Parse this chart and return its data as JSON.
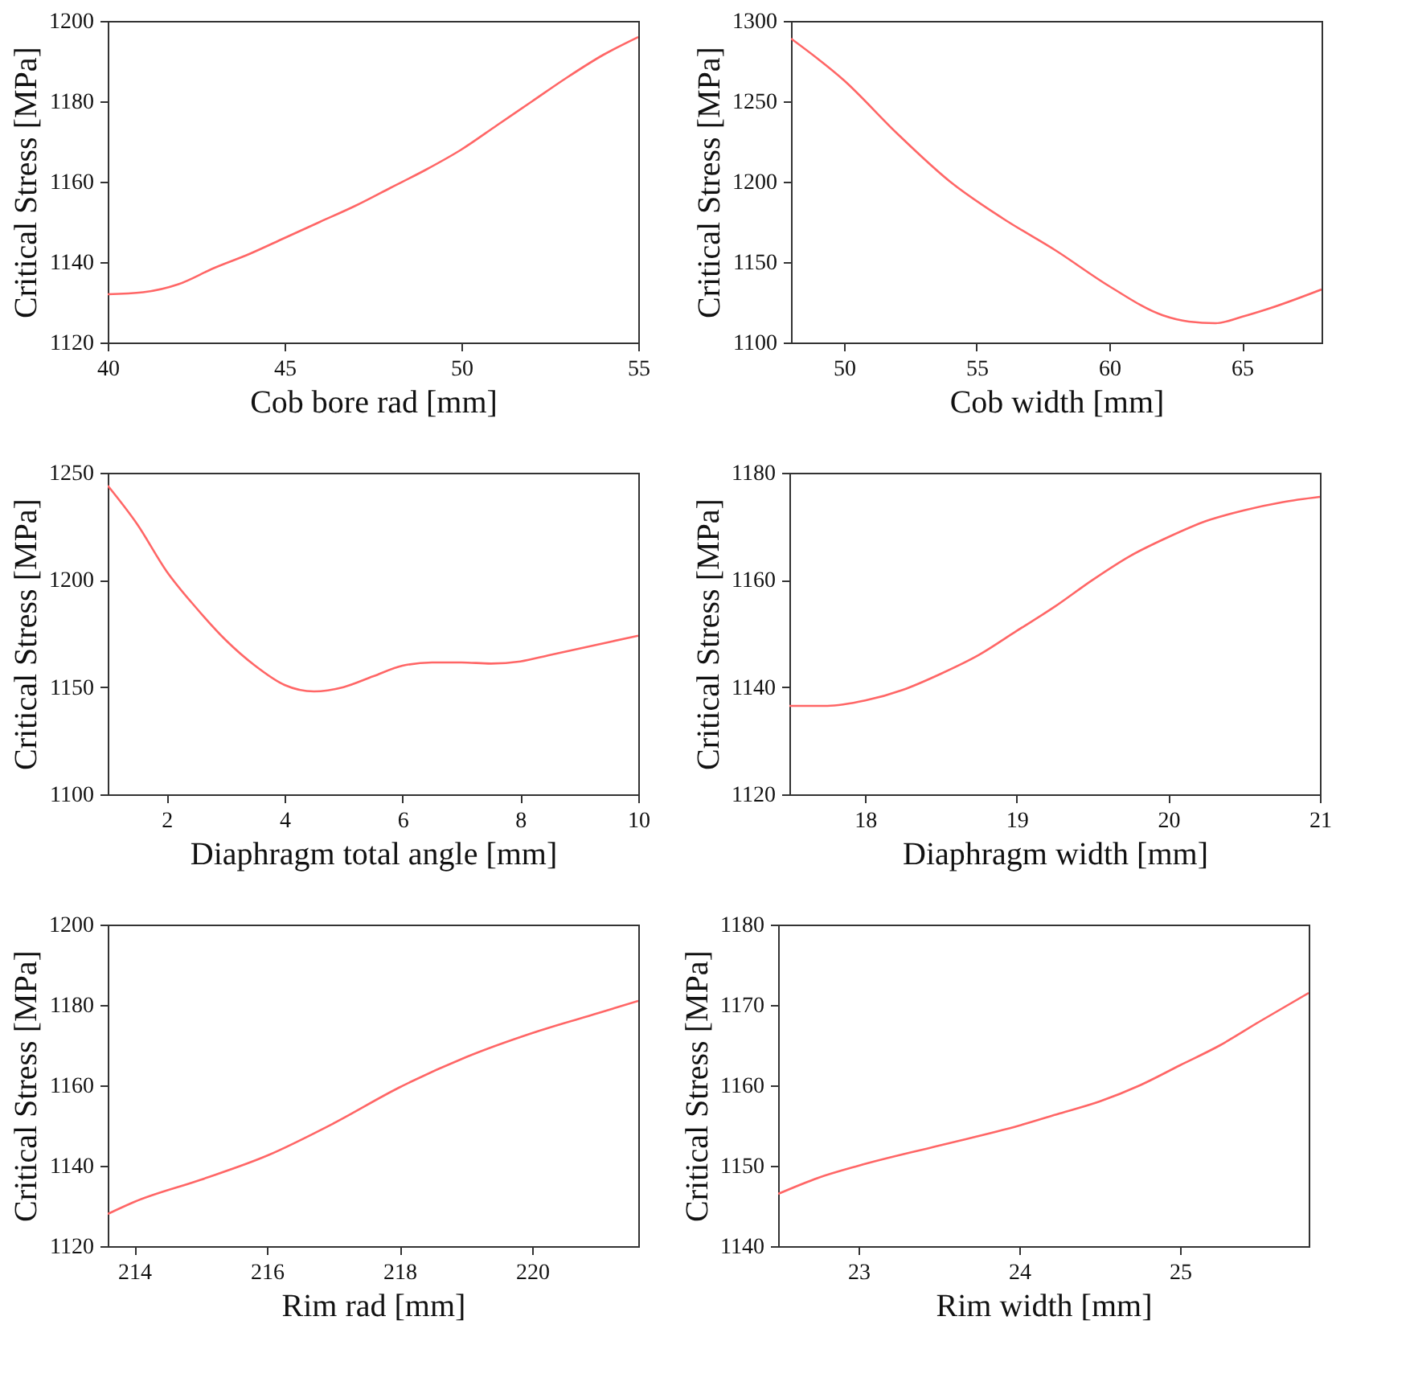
{
  "chart_data": [
    {
      "type": "line",
      "xlabel": "Cob bore rad [mm]",
      "ylabel": "Critical Stress [MPa]",
      "color": "#ff6666",
      "x": [
        40,
        41,
        42,
        43,
        44,
        45,
        46,
        47,
        48,
        49,
        50,
        51,
        52,
        53,
        54,
        55
      ],
      "values": [
        1132,
        1132.5,
        1134.5,
        1138.5,
        1142,
        1146,
        1150,
        1154,
        1158.5,
        1163,
        1168,
        1174,
        1180,
        1186,
        1191.5,
        1196
      ],
      "xlim": [
        40,
        55
      ],
      "xticks": [
        40,
        45,
        50,
        55
      ],
      "ylim": [
        1120,
        1200
      ],
      "yticks": [
        1120,
        1140,
        1160,
        1180,
        1200
      ],
      "grid": false
    },
    {
      "type": "line",
      "xlabel": "Cob width [mm]",
      "ylabel": "Critical Stress [MPa]",
      "color": "#ff6666",
      "x": [
        48,
        50,
        52,
        54,
        56,
        58,
        60,
        62,
        63,
        64,
        65,
        66,
        68
      ],
      "values": [
        1289,
        1263,
        1230,
        1200,
        1177,
        1157,
        1135,
        1117,
        1113,
        1112,
        1116,
        1121,
        1133
      ],
      "xlim": [
        48,
        68
      ],
      "xticks": [
        50,
        55,
        60,
        65
      ],
      "ylim": [
        1100,
        1300
      ],
      "yticks": [
        1100,
        1150,
        1200,
        1250,
        1300
      ],
      "grid": false
    },
    {
      "type": "line",
      "xlabel": "Diaphragm total angle [mm]",
      "ylabel": "Critical Stress [MPa]",
      "color": "#ff6666",
      "x": [
        1,
        1.5,
        2,
        2.5,
        3,
        3.5,
        4,
        4.5,
        5,
        5.5,
        6,
        6.5,
        7,
        7.5,
        8,
        8.5,
        9,
        9.5,
        10
      ],
      "values": [
        1244,
        1226,
        1204,
        1187,
        1172,
        1160,
        1151,
        1148,
        1150,
        1155,
        1160,
        1161.5,
        1161.5,
        1161,
        1162,
        1165,
        1168,
        1171,
        1174
      ],
      "xlim": [
        1,
        10
      ],
      "xticks": [
        2,
        4,
        6,
        8,
        10
      ],
      "ylim": [
        1100,
        1250
      ],
      "yticks": [
        1100,
        1150,
        1200,
        1250
      ],
      "grid": false
    },
    {
      "type": "line",
      "xlabel": "Diaphragm width [mm]",
      "ylabel": "Critical Stress [MPa]",
      "color": "#ff6666",
      "x": [
        17.5,
        17.75,
        18,
        18.25,
        18.5,
        18.75,
        19,
        19.25,
        19.5,
        19.75,
        20,
        20.25,
        20.5,
        20.75,
        21
      ],
      "values": [
        1136.5,
        1136.5,
        1137.5,
        1139.5,
        1142.5,
        1146,
        1150.5,
        1155,
        1160,
        1164.5,
        1168,
        1171,
        1173,
        1174.5,
        1175.5
      ],
      "xlim": [
        17.5,
        21
      ],
      "xticks": [
        18,
        19,
        20,
        21
      ],
      "ylim": [
        1120,
        1180
      ],
      "yticks": [
        1120,
        1140,
        1160,
        1180
      ],
      "grid": false
    },
    {
      "type": "line",
      "xlabel": "Rim rad [mm]",
      "ylabel": "Critical Stress [MPa]",
      "color": "#ff6666",
      "x": [
        213.6,
        214,
        215,
        216,
        217,
        218,
        219,
        220,
        221,
        221.6
      ],
      "values": [
        1128,
        1131,
        1136.5,
        1142.5,
        1150.5,
        1159.5,
        1167,
        1173,
        1178,
        1181
      ],
      "xlim": [
        213.6,
        221.6
      ],
      "xticks": [
        214,
        216,
        218,
        220
      ],
      "ylim": [
        1120,
        1200
      ],
      "yticks": [
        1120,
        1140,
        1160,
        1180,
        1200
      ],
      "grid": false
    },
    {
      "type": "line",
      "xlabel": "Rim width [mm]",
      "ylabel": "Critical Stress [MPa]",
      "color": "#ff6666",
      "x": [
        22.5,
        22.75,
        23,
        23.5,
        24,
        24.25,
        24.5,
        24.75,
        25,
        25.25,
        25.5,
        25.8
      ],
      "values": [
        1146.5,
        1148.5,
        1150,
        1152.5,
        1155,
        1156.5,
        1158,
        1160,
        1162.5,
        1165,
        1168,
        1171.5
      ],
      "xlim": [
        22.5,
        25.8
      ],
      "xticks": [
        23,
        24,
        25
      ],
      "ylim": [
        1140,
        1180
      ],
      "yticks": [
        1140,
        1150,
        1160,
        1170,
        1180
      ],
      "grid": false
    }
  ]
}
